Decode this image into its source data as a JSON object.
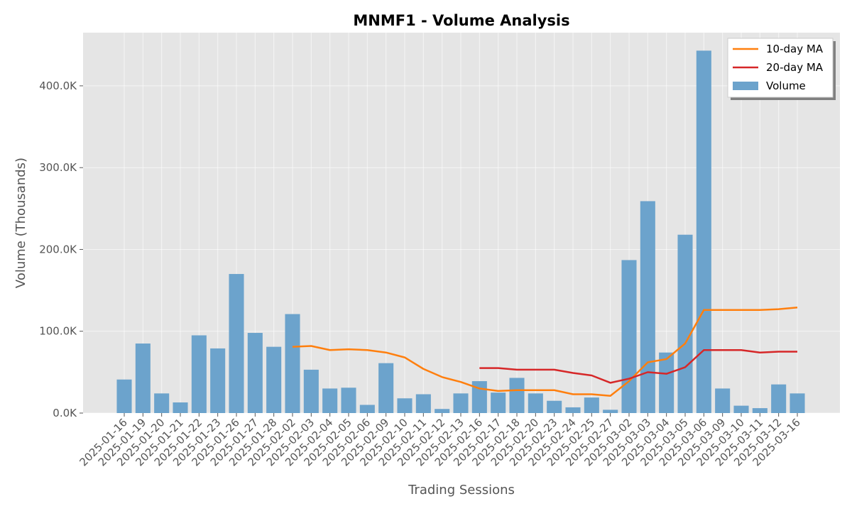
{
  "chart_data": {
    "type": "bar",
    "title": "MNMF1 - Volume Analysis",
    "xlabel": "Trading Sessions",
    "ylabel": "Volume (Thousands)",
    "ylim": [
      0,
      465000
    ],
    "yticks": [
      0,
      100000,
      200000,
      300000,
      400000
    ],
    "ytick_labels": [
      "0.0K",
      "100.0K",
      "200.0K",
      "300.0K",
      "400.0K"
    ],
    "grid": true,
    "legend_position": "top-right",
    "categories": [
      "2025-01-16",
      "2025-01-19",
      "2025-01-20",
      "2025-01-21",
      "2025-01-22",
      "2025-01-23",
      "2025-01-26",
      "2025-01-27",
      "2025-01-28",
      "2025-02-02",
      "2025-02-03",
      "2025-02-04",
      "2025-02-05",
      "2025-02-06",
      "2025-02-09",
      "2025-02-10",
      "2025-02-11",
      "2025-02-12",
      "2025-02-13",
      "2025-02-16",
      "2025-02-17",
      "2025-02-18",
      "2025-02-20",
      "2025-02-23",
      "2025-02-24",
      "2025-02-25",
      "2025-02-27",
      "2025-03-02",
      "2025-03-03",
      "2025-03-04",
      "2025-03-05",
      "2025-03-06",
      "2025-03-09",
      "2025-03-10",
      "2025-03-11",
      "2025-03-12",
      "2025-03-16"
    ],
    "series": [
      {
        "name": "Volume",
        "kind": "bar",
        "color": "#6ca3cc",
        "values": [
          41000,
          85000,
          24000,
          13000,
          95000,
          79000,
          170000,
          98000,
          81000,
          121000,
          53000,
          30000,
          31000,
          10000,
          61000,
          18000,
          23000,
          5000,
          24000,
          39000,
          25000,
          43000,
          24000,
          15000,
          7000,
          19000,
          4000,
          187000,
          259000,
          74000,
          218000,
          443000,
          30000,
          9000,
          6000,
          35000,
          24000
        ]
      },
      {
        "name": "10-day MA",
        "kind": "line",
        "color": "#ff7f0e",
        "values": [
          null,
          null,
          null,
          null,
          null,
          null,
          null,
          null,
          null,
          81000,
          82000,
          77000,
          78000,
          77000,
          74000,
          68000,
          54000,
          44000,
          38000,
          30000,
          27000,
          28000,
          28000,
          28000,
          23000,
          23000,
          21000,
          39000,
          62000,
          66000,
          85000,
          126000,
          126000,
          126000,
          126000,
          127000,
          129000
        ]
      },
      {
        "name": "20-day MA",
        "kind": "line",
        "color": "#d62728",
        "values": [
          null,
          null,
          null,
          null,
          null,
          null,
          null,
          null,
          null,
          null,
          null,
          null,
          null,
          null,
          null,
          null,
          null,
          null,
          null,
          55000,
          55000,
          53000,
          53000,
          53000,
          49000,
          46000,
          37000,
          42000,
          50000,
          48000,
          56000,
          77000,
          77000,
          77000,
          74000,
          75000,
          75000
        ]
      }
    ]
  }
}
